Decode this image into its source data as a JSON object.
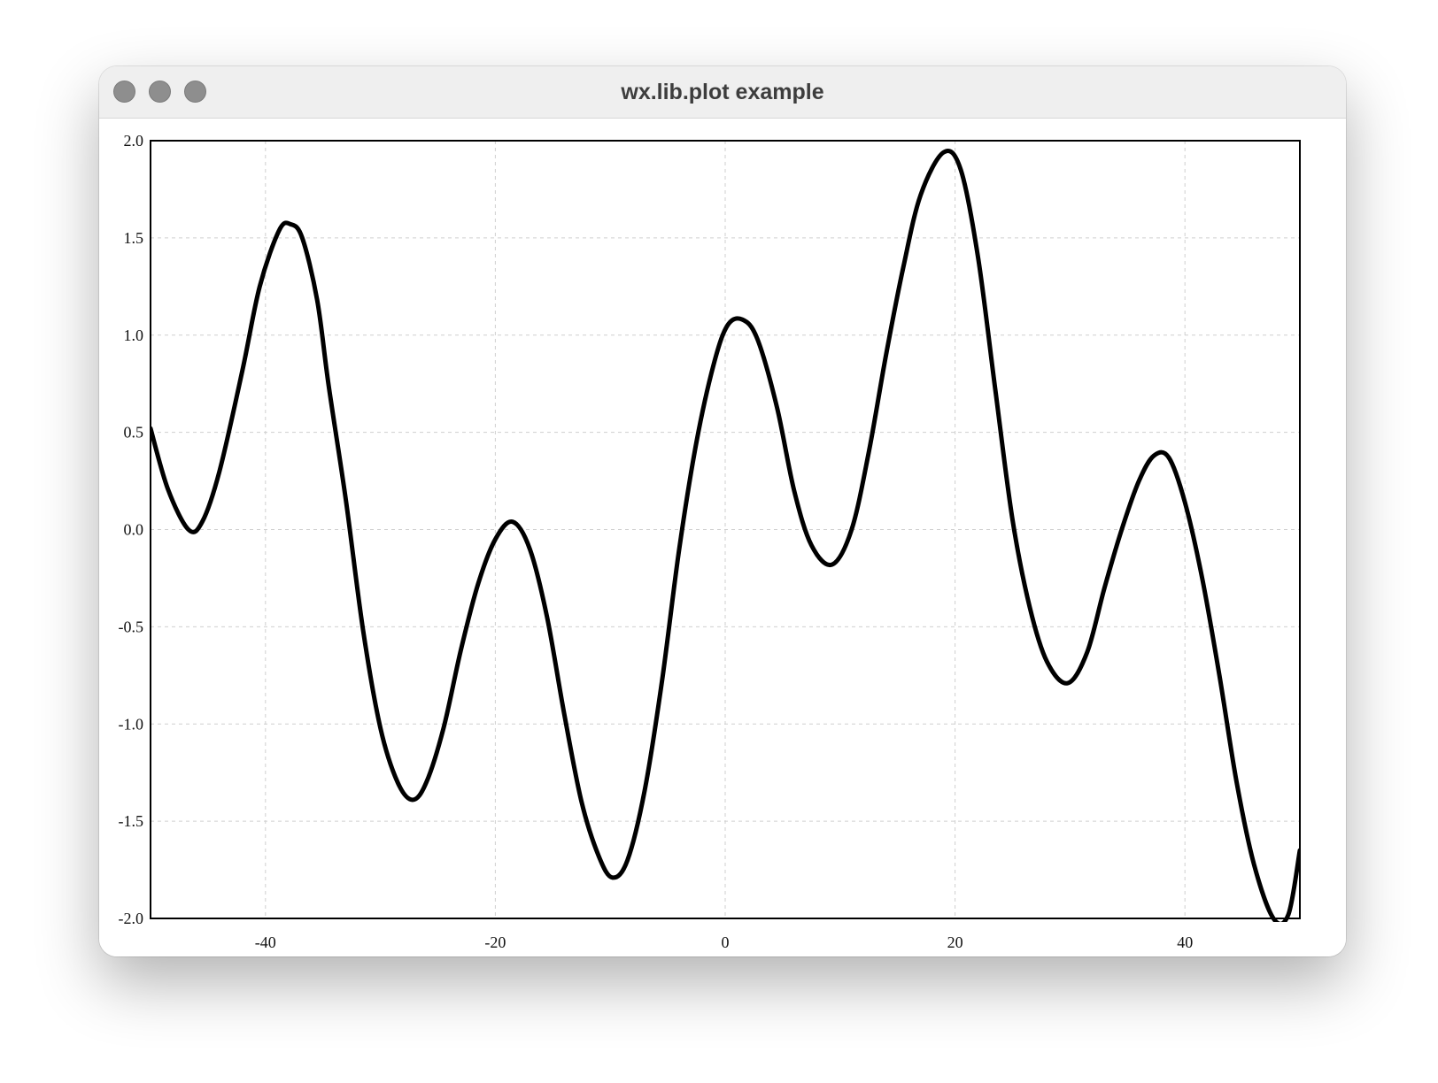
{
  "window": {
    "title": "wx.lib.plot example",
    "buttons": [
      "close-button",
      "minimize-button",
      "maximize-button"
    ]
  },
  "chart_data": {
    "type": "line",
    "title": "",
    "xlabel": "",
    "ylabel": "",
    "xlim": [
      -50,
      50
    ],
    "ylim": [
      -2.0,
      2.0
    ],
    "grid": true,
    "grid_style": "dashed",
    "line_color": "#000000",
    "x_ticks": [
      -40,
      -20,
      0,
      20,
      40
    ],
    "x_tick_labels": [
      "-40",
      "-20",
      "0",
      "20",
      "40"
    ],
    "y_ticks": [
      2.0,
      1.5,
      1.0,
      0.5,
      0.0,
      -0.5,
      -1.0,
      -1.5,
      -2.0
    ],
    "y_tick_labels": [
      "2.0",
      "1.5",
      "1.0",
      "0.5",
      "0.0",
      "-0.5",
      "-1.0",
      "-1.5",
      "-2.0"
    ],
    "series": [
      {
        "x": [
          -50,
          -48.5,
          -46.7,
          -45.5,
          -44,
          -42,
          -40.5,
          -38.8,
          -37.8,
          -36.8,
          -35.5,
          -34.5,
          -33,
          -31.5,
          -30,
          -28.5,
          -27.2,
          -26,
          -24.5,
          -23,
          -21.5,
          -20,
          -18.5,
          -17,
          -15.5,
          -14,
          -12.5,
          -11,
          -9.8,
          -8.5,
          -7,
          -5.5,
          -4,
          -2.5,
          -1,
          0.2,
          1.5,
          2.8,
          4.5,
          6,
          7.5,
          9.3,
          11,
          12.5,
          14,
          15.5,
          17,
          19,
          20.5,
          22,
          23.5,
          25,
          26.5,
          28,
          29.8,
          31.5,
          33,
          34.5,
          36,
          37.3,
          38.6,
          40,
          41.5,
          43,
          44.5,
          46,
          47.7,
          49,
          50
        ],
        "y": [
          0.52,
          0.21,
          0.0,
          0.04,
          0.3,
          0.82,
          1.25,
          1.54,
          1.57,
          1.5,
          1.18,
          0.74,
          0.15,
          -0.52,
          -1.02,
          -1.3,
          -1.39,
          -1.3,
          -1.02,
          -0.62,
          -0.28,
          -0.05,
          0.04,
          -0.1,
          -0.45,
          -0.95,
          -1.4,
          -1.68,
          -1.79,
          -1.7,
          -1.34,
          -0.78,
          -0.1,
          0.45,
          0.85,
          1.05,
          1.08,
          0.98,
          0.63,
          0.2,
          -0.08,
          -0.18,
          0.0,
          0.4,
          0.9,
          1.35,
          1.72,
          1.94,
          1.85,
          1.4,
          0.72,
          0.05,
          -0.4,
          -0.68,
          -0.79,
          -0.63,
          -0.3,
          0.0,
          0.25,
          0.38,
          0.37,
          0.14,
          -0.25,
          -0.75,
          -1.3,
          -1.72,
          -2.0,
          -1.98,
          -1.65
        ]
      }
    ]
  }
}
